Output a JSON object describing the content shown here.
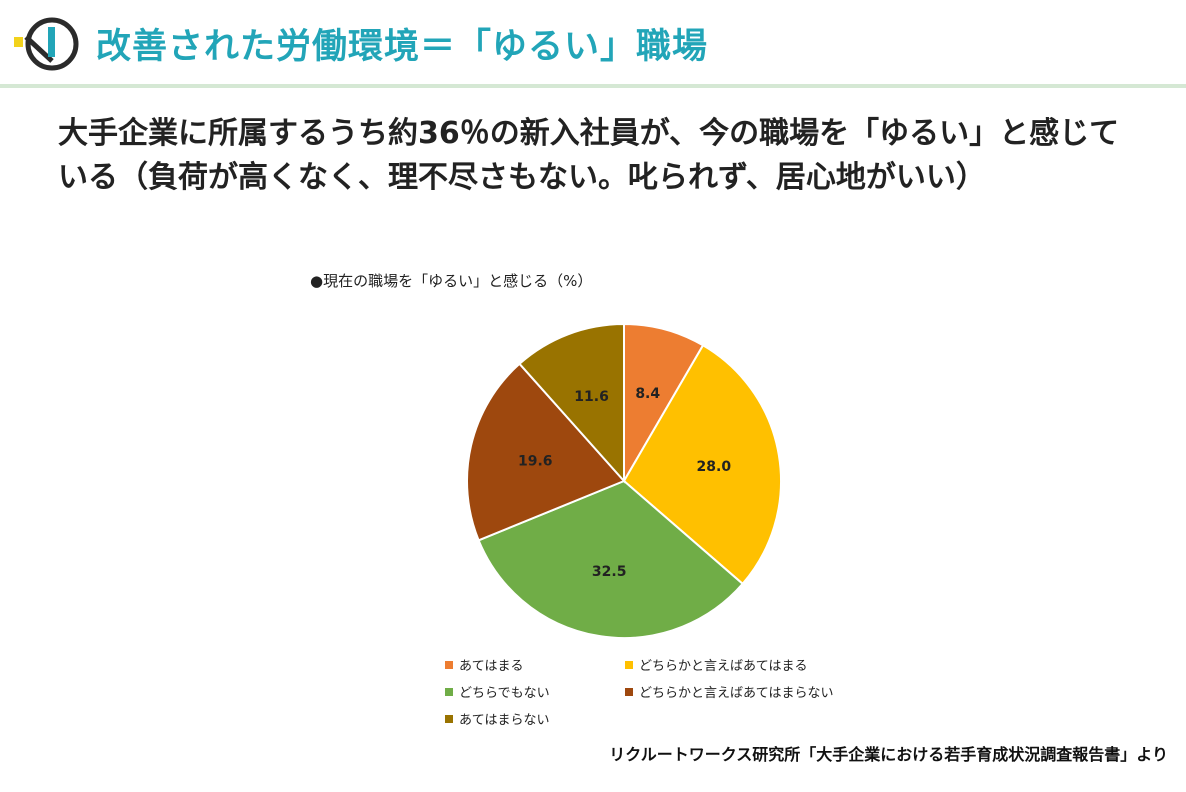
{
  "slide": {
    "title": "改善された労働環境＝「ゆるい」職場",
    "subtitle": "大手企業に所属するうち約36％の新入社員が、今の職場を「ゆるい」と感じている（負荷が高くなく、理不尽さもない。叱られず、居心地がいい）",
    "source": "リクルートワークス研究所「大手企業における若手育成状況調査報告書」より",
    "title_color": "#22a5b8"
  },
  "chart_data": {
    "type": "pie",
    "title": "●現在の職場を「ゆるい」と感じる（%）",
    "slices": [
      {
        "label": "あてはまる",
        "value": 8.4,
        "color": "#ed7d31"
      },
      {
        "label": "どちらかと言えばあてはまる",
        "value": 28.0,
        "color": "#ffc000"
      },
      {
        "label": "どちらでもない",
        "value": 32.5,
        "color": "#70ad47"
      },
      {
        "label": "どちらかと言えばあてはまらない",
        "value": 19.6,
        "color": "#9e480e"
      },
      {
        "label": "あてはまらない",
        "value": 11.6,
        "color": "#997300"
      }
    ],
    "data_label_format": "one decimal",
    "start_angle": "12 o'clock",
    "direction": "clockwise",
    "legend_position": "bottom"
  }
}
